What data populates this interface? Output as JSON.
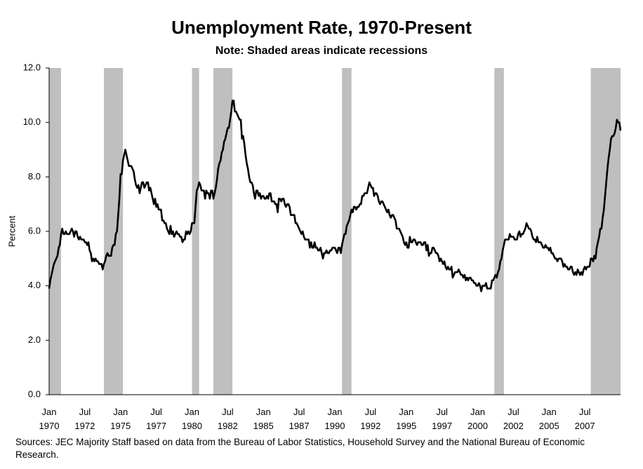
{
  "chart_data": {
    "type": "line",
    "title": "Unemployment Rate, 1970-Present",
    "subtitle": "Note: Shaded areas indicate recessions",
    "y_label": "Percent",
    "source": "Sources: JEC Majority Staff based on data from the Bureau of Labor Statistics, Household Survey and the National Bureau of Economic Research.",
    "color": "#000000",
    "recession_color": "#bfbfbf",
    "recessions": [
      [
        0,
        10
      ],
      [
        46,
        62
      ],
      [
        120,
        126
      ],
      [
        138,
        154
      ],
      [
        246,
        254
      ],
      [
        374,
        382
      ],
      [
        455,
        480
      ]
    ],
    "ylim": [
      0,
      12
    ],
    "yticks": [
      {
        "value": 0,
        "label": "0.0"
      },
      {
        "value": 2,
        "label": "2.0"
      },
      {
        "value": 4,
        "label": "4.0"
      },
      {
        "value": 6,
        "label": "6.0"
      },
      {
        "value": 8,
        "label": "8.0"
      },
      {
        "value": 10,
        "label": "10.0"
      },
      {
        "value": 12,
        "label": "12.0"
      }
    ],
    "categories": [
      "Jan\n1970",
      null,
      null,
      null,
      null,
      null,
      null,
      null,
      null,
      null,
      null,
      null,
      null,
      null,
      null,
      null,
      null,
      null,
      null,
      null,
      null,
      null,
      null,
      null,
      null,
      null,
      null,
      null,
      null,
      null,
      "Jul\n1972",
      null,
      null,
      null,
      null,
      null,
      null,
      null,
      null,
      null,
      null,
      null,
      null,
      null,
      null,
      null,
      null,
      null,
      null,
      null,
      null,
      null,
      null,
      null,
      null,
      null,
      null,
      null,
      null,
      null,
      "Jan\n1975",
      null,
      null,
      null,
      null,
      null,
      null,
      null,
      null,
      null,
      null,
      null,
      null,
      null,
      null,
      null,
      null,
      null,
      null,
      null,
      null,
      null,
      null,
      null,
      null,
      null,
      null,
      null,
      null,
      null,
      "Jul\n1977",
      null,
      null,
      null,
      null,
      null,
      null,
      null,
      null,
      null,
      null,
      null,
      null,
      null,
      null,
      null,
      null,
      null,
      null,
      null,
      null,
      null,
      null,
      null,
      null,
      null,
      null,
      null,
      null,
      null,
      "Jan\n1980",
      null,
      null,
      null,
      null,
      null,
      null,
      null,
      null,
      null,
      null,
      null,
      null,
      null,
      null,
      null,
      null,
      null,
      null,
      null,
      null,
      null,
      null,
      null,
      null,
      null,
      null,
      null,
      null,
      null,
      "Jul\n1982",
      null,
      null,
      null,
      null,
      null,
      null,
      null,
      null,
      null,
      null,
      null,
      null,
      null,
      null,
      null,
      null,
      null,
      null,
      null,
      null,
      null,
      null,
      null,
      null,
      null,
      null,
      null,
      null,
      null,
      "Jan\n1985",
      null,
      null,
      null,
      null,
      null,
      null,
      null,
      null,
      null,
      null,
      null,
      null,
      null,
      null,
      null,
      null,
      null,
      null,
      null,
      null,
      null,
      null,
      null,
      null,
      null,
      null,
      null,
      null,
      null,
      "Jul\n1987",
      null,
      null,
      null,
      null,
      null,
      null,
      null,
      null,
      null,
      null,
      null,
      null,
      null,
      null,
      null,
      null,
      null,
      null,
      null,
      null,
      null,
      null,
      null,
      null,
      null,
      null,
      null,
      null,
      null,
      "Jan\n1990",
      null,
      null,
      null,
      null,
      null,
      null,
      null,
      null,
      null,
      null,
      null,
      null,
      null,
      null,
      null,
      null,
      null,
      null,
      null,
      null,
      null,
      null,
      null,
      null,
      null,
      null,
      null,
      null,
      null,
      "Jul\n1992",
      null,
      null,
      null,
      null,
      null,
      null,
      null,
      null,
      null,
      null,
      null,
      null,
      null,
      null,
      null,
      null,
      null,
      null,
      null,
      null,
      null,
      null,
      null,
      null,
      null,
      null,
      null,
      null,
      null,
      "Jan\n1995",
      null,
      null,
      null,
      null,
      null,
      null,
      null,
      null,
      null,
      null,
      null,
      null,
      null,
      null,
      null,
      null,
      null,
      null,
      null,
      null,
      null,
      null,
      null,
      null,
      null,
      null,
      null,
      null,
      null,
      "Jul\n1997",
      null,
      null,
      null,
      null,
      null,
      null,
      null,
      null,
      null,
      null,
      null,
      null,
      null,
      null,
      null,
      null,
      null,
      null,
      null,
      null,
      null,
      null,
      null,
      null,
      null,
      null,
      null,
      null,
      null,
      "Jan\n2000",
      null,
      null,
      null,
      null,
      null,
      null,
      null,
      null,
      null,
      null,
      null,
      null,
      null,
      null,
      null,
      null,
      null,
      null,
      null,
      null,
      null,
      null,
      null,
      null,
      null,
      null,
      null,
      null,
      null,
      "Jul\n2002",
      null,
      null,
      null,
      null,
      null,
      null,
      null,
      null,
      null,
      null,
      null,
      null,
      null,
      null,
      null,
      null,
      null,
      null,
      null,
      null,
      null,
      null,
      null,
      null,
      null,
      null,
      null,
      null,
      null,
      "Jan\n2005",
      null,
      null,
      null,
      null,
      null,
      null,
      null,
      null,
      null,
      null,
      null,
      null,
      null,
      null,
      null,
      null,
      null,
      null,
      null,
      null,
      null,
      null,
      null,
      null,
      null,
      null,
      null,
      null,
      null,
      "Jul\n2007",
      null,
      null,
      null,
      null,
      null,
      null,
      null,
      null,
      null,
      null,
      null,
      null,
      null,
      null,
      null,
      null,
      null,
      null,
      null,
      null,
      null,
      null,
      null,
      null,
      null,
      null,
      null,
      null,
      null,
      null
    ],
    "values": [
      3.9,
      4.2,
      4.4,
      4.6,
      4.8,
      4.9,
      5.0,
      5.1,
      5.4,
      5.5,
      5.9,
      6.1,
      5.9,
      5.9,
      6.0,
      5.9,
      5.9,
      5.9,
      6.0,
      6.1,
      6.0,
      5.8,
      6.0,
      6.0,
      5.8,
      5.7,
      5.8,
      5.7,
      5.7,
      5.7,
      5.6,
      5.6,
      5.5,
      5.6,
      5.3,
      5.2,
      4.9,
      5.0,
      4.9,
      5.0,
      4.9,
      4.9,
      4.8,
      4.8,
      4.8,
      4.6,
      4.8,
      4.9,
      5.1,
      5.2,
      5.1,
      5.1,
      5.1,
      5.4,
      5.5,
      5.5,
      5.9,
      6.0,
      6.6,
      7.2,
      8.1,
      8.1,
      8.6,
      8.8,
      9.0,
      8.8,
      8.6,
      8.4,
      8.4,
      8.4,
      8.3,
      8.2,
      7.9,
      7.7,
      7.6,
      7.7,
      7.4,
      7.6,
      7.8,
      7.8,
      7.6,
      7.7,
      7.8,
      7.8,
      7.5,
      7.6,
      7.4,
      7.2,
      7.0,
      7.2,
      6.9,
      7.0,
      6.8,
      6.8,
      6.8,
      6.4,
      6.4,
      6.3,
      6.3,
      6.1,
      6.0,
      5.9,
      6.2,
      5.9,
      6.0,
      5.8,
      5.9,
      6.0,
      5.9,
      5.9,
      5.8,
      5.8,
      5.6,
      5.7,
      5.7,
      6.0,
      5.9,
      6.0,
      5.9,
      6.0,
      6.3,
      6.3,
      6.3,
      6.9,
      7.5,
      7.6,
      7.8,
      7.7,
      7.5,
      7.5,
      7.5,
      7.2,
      7.5,
      7.4,
      7.4,
      7.2,
      7.5,
      7.5,
      7.2,
      7.4,
      7.6,
      7.9,
      8.3,
      8.5,
      8.6,
      8.9,
      9.0,
      9.3,
      9.4,
      9.6,
      9.8,
      9.8,
      10.1,
      10.4,
      10.8,
      10.8,
      10.4,
      10.4,
      10.3,
      10.2,
      10.1,
      10.1,
      9.4,
      9.5,
      9.2,
      8.8,
      8.5,
      8.3,
      8.0,
      7.8,
      7.8,
      7.7,
      7.4,
      7.2,
      7.5,
      7.5,
      7.3,
      7.4,
      7.2,
      7.3,
      7.3,
      7.2,
      7.2,
      7.3,
      7.2,
      7.4,
      7.4,
      7.1,
      7.1,
      7.1,
      7.0,
      7.0,
      6.7,
      7.2,
      7.2,
      7.1,
      7.2,
      7.2,
      7.0,
      6.9,
      7.0,
      7.0,
      6.9,
      6.6,
      6.6,
      6.6,
      6.6,
      6.3,
      6.3,
      6.2,
      6.1,
      6.0,
      5.9,
      6.0,
      5.8,
      5.7,
      5.7,
      5.7,
      5.7,
      5.4,
      5.6,
      5.4,
      5.4,
      5.6,
      5.4,
      5.4,
      5.3,
      5.3,
      5.4,
      5.2,
      5.0,
      5.2,
      5.2,
      5.3,
      5.2,
      5.2,
      5.3,
      5.3,
      5.4,
      5.4,
      5.4,
      5.3,
      5.2,
      5.4,
      5.4,
      5.2,
      5.5,
      5.7,
      5.9,
      5.9,
      6.2,
      6.3,
      6.4,
      6.6,
      6.8,
      6.7,
      6.9,
      6.9,
      6.8,
      6.9,
      6.9,
      7.0,
      7.0,
      7.3,
      7.3,
      7.4,
      7.4,
      7.4,
      7.6,
      7.8,
      7.7,
      7.6,
      7.6,
      7.3,
      7.4,
      7.4,
      7.3,
      7.1,
      7.0,
      7.1,
      7.1,
      7.0,
      6.9,
      6.8,
      6.7,
      6.8,
      6.6,
      6.5,
      6.6,
      6.6,
      6.5,
      6.4,
      6.1,
      6.1,
      6.1,
      6.0,
      5.9,
      5.8,
      5.6,
      5.5,
      5.6,
      5.4,
      5.4,
      5.8,
      5.6,
      5.6,
      5.7,
      5.7,
      5.6,
      5.5,
      5.6,
      5.6,
      5.6,
      5.5,
      5.5,
      5.6,
      5.6,
      5.3,
      5.5,
      5.1,
      5.2,
      5.2,
      5.4,
      5.4,
      5.3,
      5.2,
      5.2,
      5.1,
      4.9,
      5.0,
      4.9,
      4.8,
      4.9,
      4.7,
      4.6,
      4.7,
      4.6,
      4.6,
      4.7,
      4.3,
      4.4,
      4.5,
      4.5,
      4.5,
      4.6,
      4.5,
      4.4,
      4.4,
      4.3,
      4.4,
      4.2,
      4.3,
      4.2,
      4.3,
      4.3,
      4.2,
      4.2,
      4.1,
      4.1,
      4.0,
      4.0,
      4.1,
      4.0,
      3.8,
      4.0,
      4.0,
      4.0,
      4.1,
      3.9,
      3.9,
      3.9,
      3.9,
      4.2,
      4.2,
      4.3,
      4.4,
      4.3,
      4.5,
      4.6,
      4.9,
      5.0,
      5.3,
      5.5,
      5.7,
      5.7,
      5.7,
      5.7,
      5.9,
      5.8,
      5.8,
      5.8,
      5.7,
      5.7,
      5.7,
      5.9,
      6.0,
      5.8,
      5.9,
      5.9,
      6.0,
      6.1,
      6.3,
      6.2,
      6.1,
      6.1,
      6.0,
      5.8,
      5.7,
      5.7,
      5.6,
      5.8,
      5.6,
      5.6,
      5.6,
      5.5,
      5.4,
      5.4,
      5.5,
      5.4,
      5.4,
      5.3,
      5.4,
      5.2,
      5.2,
      5.1,
      5.0,
      5.0,
      4.9,
      5.0,
      5.0,
      5.0,
      4.9,
      4.7,
      4.8,
      4.7,
      4.7,
      4.6,
      4.6,
      4.7,
      4.7,
      4.5,
      4.4,
      4.5,
      4.4,
      4.6,
      4.5,
      4.4,
      4.5,
      4.4,
      4.6,
      4.7,
      4.6,
      4.7,
      4.7,
      4.7,
      5.0,
      5.0,
      4.9,
      5.1,
      5.0,
      5.4,
      5.6,
      5.8,
      6.1,
      6.1,
      6.5,
      6.8,
      7.3,
      7.8,
      8.3,
      8.7,
      9.0,
      9.4,
      9.5,
      9.5,
      9.6,
      9.8,
      10.1,
      10.0,
      10.0,
      9.7
    ]
  }
}
